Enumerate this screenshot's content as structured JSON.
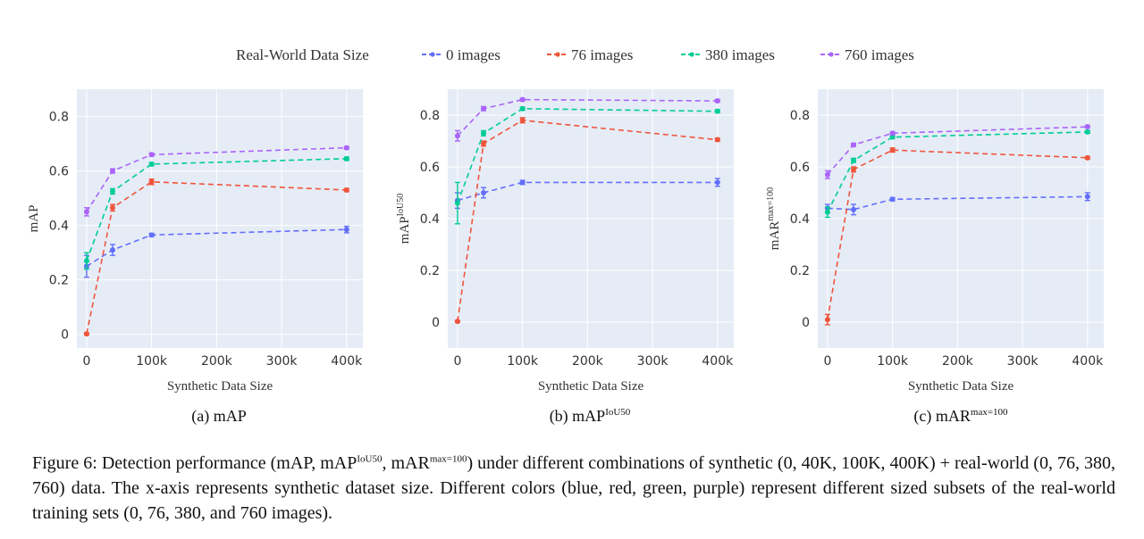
{
  "legend": {
    "title": "Real-World Data Size",
    "entries": [
      "0 images",
      "76 images",
      "380 images",
      "760 images"
    ]
  },
  "colors": {
    "s0": "#636efa",
    "s1": "#ef553b",
    "s2": "#00cc96",
    "s3": "#ab63fa",
    "plot_bg": "#e5ecf6"
  },
  "chart_data": [
    {
      "type": "line",
      "subtitle": "(a) mAP",
      "xlabel": "Synthetic Data Size",
      "ylabel": "mAP",
      "ylim": [
        -0.05,
        0.9
      ],
      "xlim": [
        -15000,
        425000
      ],
      "x": [
        0,
        40000,
        100000,
        400000
      ],
      "xticks": [
        0,
        100000,
        200000,
        300000,
        400000
      ],
      "xtick_labels": [
        "0",
        "100k",
        "200k",
        "300k",
        "400k"
      ],
      "yticks": [
        0,
        0.2,
        0.4,
        0.6,
        0.8
      ],
      "ytick_labels": [
        "0",
        "0.2",
        "0.4",
        "0.6",
        "0.8"
      ],
      "series": [
        {
          "name": "0 images",
          "values": [
            0.25,
            0.31,
            0.365,
            0.385
          ],
          "errors": [
            0.04,
            0.02,
            0.006,
            0.012
          ]
        },
        {
          "name": "76 images",
          "values": [
            0.002,
            0.465,
            0.56,
            0.53
          ],
          "errors": [
            0.004,
            0.012,
            0.01,
            0.006
          ]
        },
        {
          "name": "380 images",
          "values": [
            0.27,
            0.525,
            0.625,
            0.645
          ],
          "errors": [
            0.03,
            0.01,
            0.006,
            0.006
          ]
        },
        {
          "name": "760 images",
          "values": [
            0.45,
            0.6,
            0.66,
            0.685
          ],
          "errors": [
            0.015,
            0.008,
            0.006,
            0.005
          ]
        }
      ]
    },
    {
      "type": "line",
      "subtitle": "(b) mAP",
      "subtitle_sup": "IoU50",
      "xlabel": "Synthetic Data Size",
      "ylabel": "mAP",
      "ylabel_sup": "IoU50",
      "ylim": [
        -0.1,
        0.9
      ],
      "xlim": [
        -15000,
        425000
      ],
      "x": [
        0,
        40000,
        100000,
        400000
      ],
      "xticks": [
        0,
        100000,
        200000,
        300000,
        400000
      ],
      "xtick_labels": [
        "0",
        "100k",
        "200k",
        "300k",
        "400k"
      ],
      "yticks": [
        0,
        0.2,
        0.4,
        0.6,
        0.8
      ],
      "ytick_labels": [
        "0",
        "0.2",
        "0.4",
        "0.6",
        "0.8"
      ],
      "series": [
        {
          "name": "0 images",
          "values": [
            0.47,
            0.5,
            0.54,
            0.54
          ],
          "errors": [
            0.03,
            0.02,
            0.008,
            0.015
          ]
        },
        {
          "name": "76 images",
          "values": [
            0.003,
            0.69,
            0.78,
            0.705
          ],
          "errors": [
            0.004,
            0.01,
            0.01,
            0.006
          ]
        },
        {
          "name": "380 images",
          "values": [
            0.46,
            0.73,
            0.825,
            0.815
          ],
          "errors": [
            0.08,
            0.01,
            0.006,
            0.006
          ]
        },
        {
          "name": "760 images",
          "values": [
            0.72,
            0.825,
            0.86,
            0.855
          ],
          "errors": [
            0.02,
            0.008,
            0.005,
            0.005
          ]
        }
      ]
    },
    {
      "type": "line",
      "subtitle": "(c) mAR",
      "subtitle_sup": "max=100",
      "xlabel": "Synthetic Data Size",
      "ylabel": "mAR",
      "ylabel_sup": "max=100",
      "ylim": [
        -0.1,
        0.9
      ],
      "xlim": [
        -15000,
        425000
      ],
      "x": [
        0,
        40000,
        100000,
        400000
      ],
      "xticks": [
        0,
        100000,
        200000,
        300000,
        400000
      ],
      "xtick_labels": [
        "0",
        "100k",
        "200k",
        "300k",
        "400k"
      ],
      "yticks": [
        0,
        0.2,
        0.4,
        0.6,
        0.8
      ],
      "ytick_labels": [
        "0",
        "0.2",
        "0.4",
        "0.6",
        "0.8"
      ],
      "series": [
        {
          "name": "0 images",
          "values": [
            0.44,
            0.435,
            0.475,
            0.485
          ],
          "errors": [
            0.015,
            0.02,
            0.006,
            0.015
          ]
        },
        {
          "name": "76 images",
          "values": [
            0.01,
            0.59,
            0.665,
            0.635
          ],
          "errors": [
            0.02,
            0.01,
            0.008,
            0.005
          ]
        },
        {
          "name": "380 images",
          "values": [
            0.425,
            0.625,
            0.715,
            0.735
          ],
          "errors": [
            0.02,
            0.008,
            0.005,
            0.005
          ]
        },
        {
          "name": "760 images",
          "values": [
            0.57,
            0.685,
            0.73,
            0.755
          ],
          "errors": [
            0.015,
            0.006,
            0.005,
            0.005
          ]
        }
      ]
    }
  ],
  "caption": {
    "p1": "Figure 6: Detection performance (mAP, mAP",
    "sup1": "IoU50",
    "p2": ", mAR",
    "sup2": "max=100",
    "p3": ") under different combinations of synthetic (0, 40K, 100K, 400K) + real-world (0, 76, 380, 760) data. The x-axis represents synthetic dataset size. Different colors (blue, red, green, purple) represent different sized subsets of the real-world training sets (0, 76, 380, and 760 images)."
  }
}
